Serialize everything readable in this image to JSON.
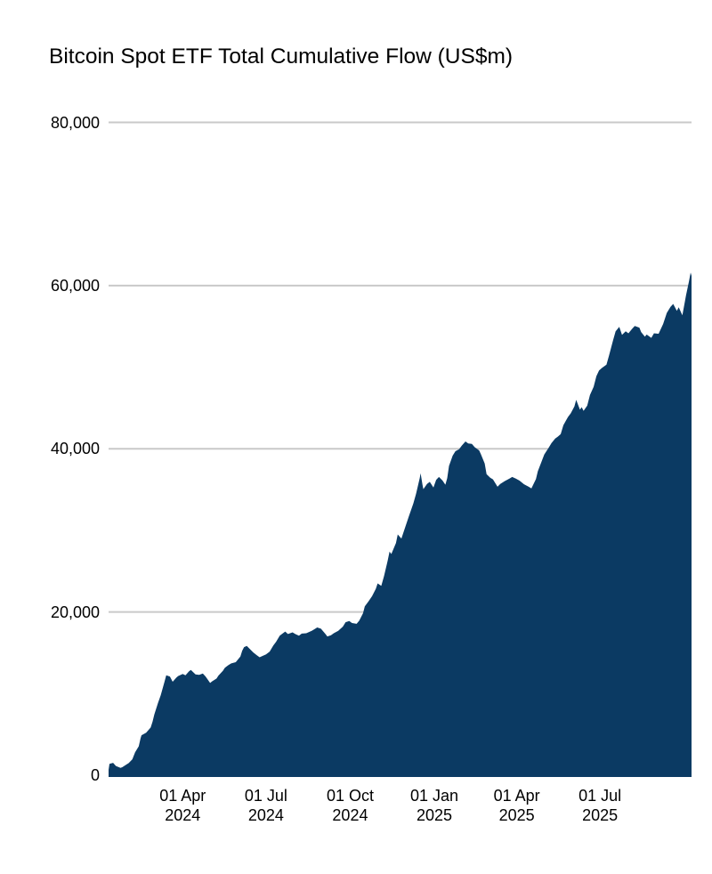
{
  "chart_data": {
    "type": "area",
    "title": "Bitcoin Spot ETF Total Cumulative Flow (US$m)",
    "xlabel": "",
    "ylabel": "",
    "x_domain": [
      "2024-01-11",
      "2025-10-09"
    ],
    "y_domain": [
      0,
      80000
    ],
    "grid": true,
    "legend": "none",
    "colors": {
      "area": "#0b3a63",
      "gridline": "#c9c9c9",
      "text": "#000000",
      "background": "#ffffff"
    },
    "y_ticks": [
      {
        "value": 0,
        "label": "0"
      },
      {
        "value": 20000,
        "label": "20,000"
      },
      {
        "value": 40000,
        "label": "40,000"
      },
      {
        "value": 60000,
        "label": "60,000"
      },
      {
        "value": 80000,
        "label": "80,000"
      }
    ],
    "x_ticks": [
      {
        "date": "2024-04-01",
        "line1": "01 Apr",
        "line2": "2024"
      },
      {
        "date": "2024-07-01",
        "line1": "01 Jul",
        "line2": "2024"
      },
      {
        "date": "2024-10-01",
        "line1": "01 Oct",
        "line2": "2024"
      },
      {
        "date": "2025-01-01",
        "line1": "01 Jan",
        "line2": "2025"
      },
      {
        "date": "2025-04-01",
        "line1": "01 Apr",
        "line2": "2025"
      },
      {
        "date": "2025-07-01",
        "line1": "01 Jul",
        "line2": "2025"
      }
    ],
    "series_name": "Total cumulative flow (US$m)",
    "series": [
      [
        "2024-01-11",
        655
      ],
      [
        "2024-01-12",
        1400
      ],
      [
        "2024-01-16",
        1520
      ],
      [
        "2024-01-19",
        1130
      ],
      [
        "2024-01-24",
        900
      ],
      [
        "2024-01-26",
        980
      ],
      [
        "2024-01-31",
        1350
      ],
      [
        "2024-02-02",
        1480
      ],
      [
        "2024-02-06",
        1950
      ],
      [
        "2024-02-09",
        2800
      ],
      [
        "2024-02-13",
        3550
      ],
      [
        "2024-02-15",
        4550
      ],
      [
        "2024-02-16",
        4900
      ],
      [
        "2024-02-21",
        5200
      ],
      [
        "2024-02-26",
        5850
      ],
      [
        "2024-02-28",
        6550
      ],
      [
        "2024-03-01",
        7450
      ],
      [
        "2024-03-05",
        8850
      ],
      [
        "2024-03-08",
        9800
      ],
      [
        "2024-03-12",
        11400
      ],
      [
        "2024-03-14",
        12250
      ],
      [
        "2024-03-18",
        12100
      ],
      [
        "2024-03-21",
        11450
      ],
      [
        "2024-03-25",
        11950
      ],
      [
        "2024-03-27",
        12150
      ],
      [
        "2024-04-01",
        12400
      ],
      [
        "2024-04-04",
        12250
      ],
      [
        "2024-04-08",
        12750
      ],
      [
        "2024-04-10",
        12900
      ],
      [
        "2024-04-15",
        12350
      ],
      [
        "2024-04-19",
        12300
      ],
      [
        "2024-04-23",
        12450
      ],
      [
        "2024-04-26",
        12100
      ],
      [
        "2024-05-01",
        11300
      ],
      [
        "2024-05-03",
        11500
      ],
      [
        "2024-05-08",
        11850
      ],
      [
        "2024-05-10",
        12200
      ],
      [
        "2024-05-15",
        12800
      ],
      [
        "2024-05-17",
        13150
      ],
      [
        "2024-05-21",
        13500
      ],
      [
        "2024-05-24",
        13700
      ],
      [
        "2024-05-29",
        13850
      ],
      [
        "2024-06-03",
        14550
      ],
      [
        "2024-06-05",
        15250
      ],
      [
        "2024-06-07",
        15700
      ],
      [
        "2024-06-10",
        15850
      ],
      [
        "2024-06-13",
        15500
      ],
      [
        "2024-06-17",
        15050
      ],
      [
        "2024-06-21",
        14700
      ],
      [
        "2024-06-24",
        14450
      ],
      [
        "2024-06-27",
        14600
      ],
      [
        "2024-07-01",
        14800
      ],
      [
        "2024-07-05",
        15150
      ],
      [
        "2024-07-09",
        15900
      ],
      [
        "2024-07-12",
        16350
      ],
      [
        "2024-07-16",
        17100
      ],
      [
        "2024-07-19",
        17350
      ],
      [
        "2024-07-22",
        17600
      ],
      [
        "2024-07-25",
        17300
      ],
      [
        "2024-07-30",
        17500
      ],
      [
        "2024-08-02",
        17300
      ],
      [
        "2024-08-06",
        17100
      ],
      [
        "2024-08-09",
        17350
      ],
      [
        "2024-08-14",
        17400
      ],
      [
        "2024-08-20",
        17700
      ],
      [
        "2024-08-23",
        17900
      ],
      [
        "2024-08-26",
        18100
      ],
      [
        "2024-08-30",
        17950
      ],
      [
        "2024-09-04",
        17300
      ],
      [
        "2024-09-06",
        17000
      ],
      [
        "2024-09-10",
        17150
      ],
      [
        "2024-09-13",
        17400
      ],
      [
        "2024-09-18",
        17700
      ],
      [
        "2024-09-23",
        18200
      ],
      [
        "2024-09-26",
        18750
      ],
      [
        "2024-09-30",
        18900
      ],
      [
        "2024-10-03",
        18650
      ],
      [
        "2024-10-08",
        18550
      ],
      [
        "2024-10-11",
        18950
      ],
      [
        "2024-10-15",
        19850
      ],
      [
        "2024-10-17",
        20700
      ],
      [
        "2024-10-21",
        21300
      ],
      [
        "2024-10-25",
        21950
      ],
      [
        "2024-10-29",
        22850
      ],
      [
        "2024-10-31",
        23500
      ],
      [
        "2024-11-04",
        23200
      ],
      [
        "2024-11-07",
        24400
      ],
      [
        "2024-11-11",
        26300
      ],
      [
        "2024-11-13",
        27400
      ],
      [
        "2024-11-15",
        27100
      ],
      [
        "2024-11-20",
        28450
      ],
      [
        "2024-11-22",
        29500
      ],
      [
        "2024-11-26",
        29000
      ],
      [
        "2024-11-29",
        30000
      ],
      [
        "2024-12-04",
        31700
      ],
      [
        "2024-12-09",
        33300
      ],
      [
        "2024-12-12",
        34500
      ],
      [
        "2024-12-16",
        36400
      ],
      [
        "2024-12-17",
        37000
      ],
      [
        "2024-12-19",
        35600
      ],
      [
        "2024-12-20",
        35050
      ],
      [
        "2024-12-24",
        35700
      ],
      [
        "2024-12-27",
        35950
      ],
      [
        "2024-12-31",
        35250
      ],
      [
        "2025-01-03",
        36200
      ],
      [
        "2025-01-06",
        36550
      ],
      [
        "2025-01-10",
        36100
      ],
      [
        "2025-01-13",
        35600
      ],
      [
        "2025-01-15",
        36400
      ],
      [
        "2025-01-17",
        37900
      ],
      [
        "2025-01-21",
        39150
      ],
      [
        "2025-01-24",
        39700
      ],
      [
        "2025-01-28",
        39950
      ],
      [
        "2025-01-31",
        40400
      ],
      [
        "2025-02-04",
        40900
      ],
      [
        "2025-02-07",
        40650
      ],
      [
        "2025-02-11",
        40600
      ],
      [
        "2025-02-14",
        40200
      ],
      [
        "2025-02-19",
        39800
      ],
      [
        "2025-02-21",
        39300
      ],
      [
        "2025-02-25",
        38200
      ],
      [
        "2025-02-27",
        36900
      ],
      [
        "2025-03-03",
        36450
      ],
      [
        "2025-03-06",
        36250
      ],
      [
        "2025-03-11",
        35350
      ],
      [
        "2025-03-14",
        35700
      ],
      [
        "2025-03-19",
        36050
      ],
      [
        "2025-03-24",
        36350
      ],
      [
        "2025-03-27",
        36550
      ],
      [
        "2025-03-31",
        36350
      ],
      [
        "2025-04-04",
        36100
      ],
      [
        "2025-04-09",
        35650
      ],
      [
        "2025-04-14",
        35350
      ],
      [
        "2025-04-17",
        35150
      ],
      [
        "2025-04-22",
        36300
      ],
      [
        "2025-04-24",
        37250
      ],
      [
        "2025-04-28",
        38400
      ],
      [
        "2025-05-01",
        39300
      ],
      [
        "2025-05-06",
        40150
      ],
      [
        "2025-05-09",
        40700
      ],
      [
        "2025-05-13",
        41250
      ],
      [
        "2025-05-16",
        41500
      ],
      [
        "2025-05-19",
        41800
      ],
      [
        "2025-05-22",
        42900
      ],
      [
        "2025-05-27",
        43900
      ],
      [
        "2025-05-30",
        44350
      ],
      [
        "2025-06-03",
        45200
      ],
      [
        "2025-06-05",
        46000
      ],
      [
        "2025-06-09",
        44800
      ],
      [
        "2025-06-11",
        45100
      ],
      [
        "2025-06-13",
        44650
      ],
      [
        "2025-06-17",
        45300
      ],
      [
        "2025-06-20",
        46600
      ],
      [
        "2025-06-24",
        47600
      ],
      [
        "2025-06-27",
        48900
      ],
      [
        "2025-06-30",
        49600
      ],
      [
        "2025-07-03",
        49900
      ],
      [
        "2025-07-08",
        50300
      ],
      [
        "2025-07-11",
        51500
      ],
      [
        "2025-07-15",
        53200
      ],
      [
        "2025-07-18",
        54400
      ],
      [
        "2025-07-22",
        54950
      ],
      [
        "2025-07-25",
        53950
      ],
      [
        "2025-07-29",
        54400
      ],
      [
        "2025-08-01",
        54150
      ],
      [
        "2025-08-05",
        54700
      ],
      [
        "2025-08-08",
        55050
      ],
      [
        "2025-08-13",
        54850
      ],
      [
        "2025-08-15",
        54300
      ],
      [
        "2025-08-19",
        53750
      ],
      [
        "2025-08-21",
        54000
      ],
      [
        "2025-08-26",
        53600
      ],
      [
        "2025-08-29",
        54150
      ],
      [
        "2025-09-03",
        54100
      ],
      [
        "2025-09-08",
        55300
      ],
      [
        "2025-09-12",
        56650
      ],
      [
        "2025-09-16",
        57400
      ],
      [
        "2025-09-19",
        57750
      ],
      [
        "2025-09-23",
        56900
      ],
      [
        "2025-09-25",
        57350
      ],
      [
        "2025-09-29",
        56350
      ],
      [
        "2025-10-01",
        57600
      ],
      [
        "2025-10-03",
        58800
      ],
      [
        "2025-10-06",
        60400
      ],
      [
        "2025-10-08",
        61600
      ],
      [
        "2025-10-09",
        61200
      ]
    ]
  }
}
